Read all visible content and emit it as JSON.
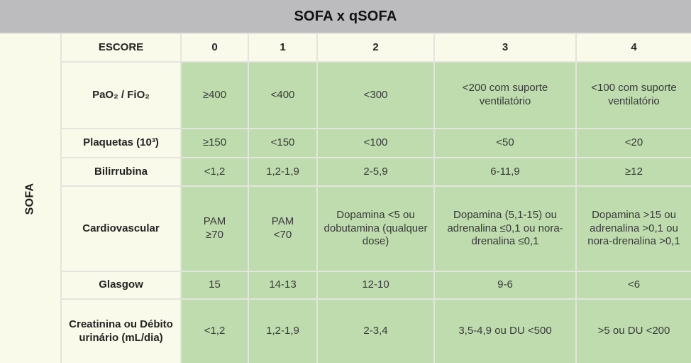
{
  "title": "SOFA x qSOFA",
  "side_label": "SOFA",
  "colors": {
    "title_bar_bg": "#bcbcbf",
    "header_cell_bg": "#f9fae9",
    "value_cell_bg": "#bedcae",
    "grid_line": "#e4e5dc",
    "title_text": "#121212",
    "value_text": "#3a3a3a"
  },
  "escore_row": {
    "label": "ESCORE",
    "scores": [
      "0",
      "1",
      "2",
      "3",
      "4"
    ]
  },
  "rows": [
    {
      "label": "PaO₂ / FiO₂",
      "values": [
        "≥400",
        "<400",
        "<300",
        "<200 com suporte ventilatório",
        "<100 com suporte ventilatório"
      ]
    },
    {
      "label": "Plaquetas (10³)",
      "values": [
        "≥150",
        "<150",
        "<100",
        "<50",
        "<20"
      ]
    },
    {
      "label": "Bilirrubina",
      "values": [
        "<1,2",
        "1,2-1,9",
        "2-5,9",
        "6-11,9",
        "≥12"
      ]
    },
    {
      "label": "Cardiovascular",
      "values": [
        "PAM\n≥70",
        "PAM\n<70",
        "Dopamina <5 ou dobutamina (qualquer dose)",
        "Dopamina (5,1-15) ou adrenalina ≤0,1 ou nora-drenalina ≤0,1",
        "Dopamina >15 ou adrenalina >0,1 ou nora-drenalina >0,1"
      ]
    },
    {
      "label": "Glasgow",
      "values": [
        "15",
        "14-13",
        "12-10",
        "9-6",
        "<6"
      ]
    },
    {
      "label": "Creatinina ou Débito urinário (mL/dia)",
      "values": [
        "<1,2",
        "1,2-1,9",
        "2-3,4",
        "3,5-4,9 ou DU <500",
        ">5 ou DU <200"
      ]
    }
  ]
}
